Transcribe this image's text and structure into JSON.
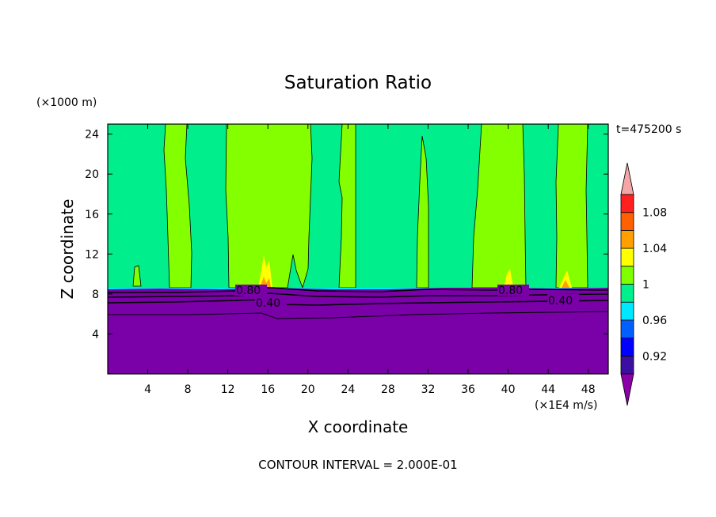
{
  "chart_data": {
    "type": "heatmap",
    "title": "Saturation Ratio",
    "xlabel": "X coordinate",
    "ylabel": "Z coordinate",
    "x_unit": "(×1E4 m/s)",
    "y_unit": "(×1000 m)",
    "time_label": "t=475200 s",
    "footer": "CONTOUR INTERVAL = 2.000E-01",
    "xlim": [
      0,
      50
    ],
    "ylim": [
      0,
      25
    ],
    "x_ticks": [
      "4",
      "8",
      "12",
      "16",
      "20",
      "24",
      "28",
      "32",
      "36",
      "40",
      "44",
      "48"
    ],
    "y_ticks": [
      "4",
      "8",
      "12",
      "16",
      "20",
      "24"
    ],
    "colorbar": {
      "labels": [
        "0.92",
        "0.96",
        "1",
        "1.04",
        "1.08"
      ],
      "levels": [
        0.9,
        0.92,
        0.94,
        0.96,
        0.98,
        1.0,
        1.02,
        1.04,
        1.06,
        1.08,
        1.1
      ],
      "colors": [
        "#8b00a8",
        "#3b0fa0",
        "#0000ff",
        "#0060ff",
        "#00e8ff",
        "#00f08c",
        "#80ff00",
        "#ffff00",
        "#ffa000",
        "#ff6000",
        "#ff2020",
        "#f4a6a6"
      ]
    },
    "contour_labels": [
      "0.80",
      "0.40",
      "0.80",
      "0.40"
    ],
    "regions": {
      "lower_layer_top_z": 8.5,
      "bands_above_1": [
        [
          5.8,
          7.9
        ],
        [
          11.5,
          20.5
        ],
        [
          23.0,
          25.0
        ],
        [
          36.5,
          41.5
        ],
        [
          44.8,
          47.7
        ]
      ]
    }
  }
}
